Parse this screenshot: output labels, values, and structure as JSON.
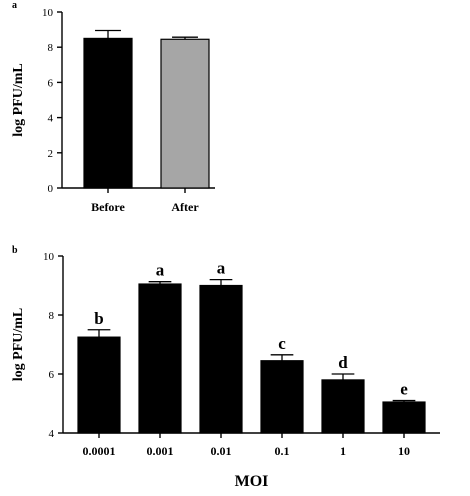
{
  "chart_data": [
    {
      "type": "bar",
      "panel_label": "a",
      "categories": [
        "Before",
        "After"
      ],
      "values": [
        8.5,
        8.45
      ],
      "errors": [
        0.45,
        0.12
      ],
      "colors": [
        "#000000",
        "#a6a6a6"
      ],
      "xlabel": "",
      "ylabel": "log PFU/mL",
      "ylim": [
        0,
        10
      ],
      "yticks": [
        0,
        2,
        4,
        6,
        8,
        10
      ],
      "grid": false
    },
    {
      "type": "bar",
      "panel_label": "b",
      "categories": [
        "0.0001",
        "0.001",
        "0.01",
        "0.1",
        "1",
        "10"
      ],
      "values": [
        7.25,
        9.05,
        9.0,
        6.45,
        5.8,
        5.05
      ],
      "errors": [
        0.25,
        0.08,
        0.2,
        0.2,
        0.2,
        0.05
      ],
      "significance": [
        "b",
        "a",
        "a",
        "c",
        "d",
        "e"
      ],
      "colors": [
        "#000000",
        "#000000",
        "#000000",
        "#000000",
        "#000000",
        "#000000"
      ],
      "xlabel": "MOI",
      "ylabel": "log PFU/mL",
      "ylim": [
        4,
        10
      ],
      "yticks": [
        4,
        6,
        8,
        10
      ],
      "grid": false
    }
  ]
}
